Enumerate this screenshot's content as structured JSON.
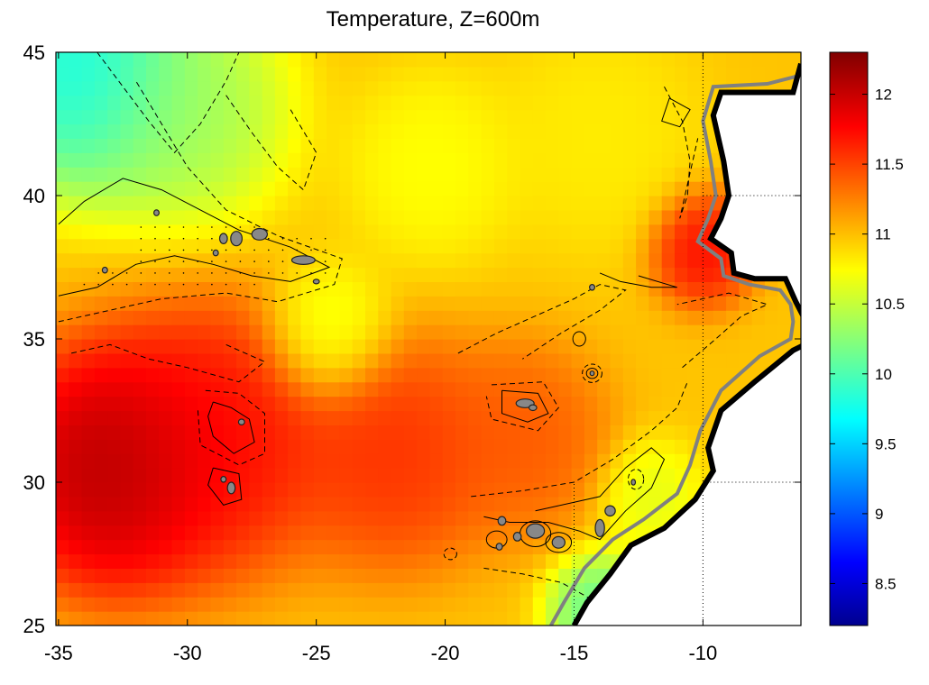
{
  "chart_data": {
    "type": "heatmap",
    "title": "Temperature, Z=600m",
    "xlabel": "",
    "ylabel": "",
    "x_ticks": [
      -35,
      -30,
      -25,
      -20,
      -15,
      -10
    ],
    "y_ticks": [
      25,
      30,
      35,
      40,
      45
    ],
    "xlim": [
      -35.1,
      -6.2
    ],
    "ylim": [
      25,
      45
    ],
    "colorbar": {
      "range": [
        8.2,
        12.3
      ],
      "ticks": [
        8.5,
        9,
        9.5,
        10,
        10.5,
        11,
        11.5,
        12
      ],
      "colormap": "jet"
    },
    "temperature_field": {
      "background": 11.0,
      "blobs": [
        {
          "lon": -33.0,
          "lat": 30.5,
          "value": 12.3,
          "spread": 3.2
        },
        {
          "lon": -29.0,
          "lat": 31.5,
          "value": 11.9,
          "spread": 3.5
        },
        {
          "lon": -22.0,
          "lat": 31.0,
          "value": 11.7,
          "spread": 3.0
        },
        {
          "lon": -17.0,
          "lat": 31.5,
          "value": 11.5,
          "spread": 2.5
        },
        {
          "lon": -10.0,
          "lat": 38.2,
          "value": 11.9,
          "spread": 1.5
        },
        {
          "lon": -34.0,
          "lat": 44.5,
          "value": 9.6,
          "spread": 3.2
        },
        {
          "lon": -30.0,
          "lat": 43.0,
          "value": 10.3,
          "spread": 3.0
        },
        {
          "lon": -24.5,
          "lat": 35.2,
          "value": 10.6,
          "spread": 1.8
        },
        {
          "lon": -20.5,
          "lat": 41.0,
          "value": 10.7,
          "spread": 2.5
        },
        {
          "lon": -14.0,
          "lat": 42.0,
          "value": 10.8,
          "spread": 3.0
        },
        {
          "lon": -14.0,
          "lat": 25.5,
          "value": 10.0,
          "spread": 1.5
        },
        {
          "lon": -12.0,
          "lat": 29.5,
          "value": 10.6,
          "spread": 1.5
        }
      ]
    },
    "dotted_gridlines": [
      {
        "lon": -10,
        "lat_range": [
          25,
          45
        ]
      },
      {
        "lon": -15,
        "lat_range": [
          25,
          30
        ]
      },
      {
        "lat": 30,
        "lon_range": [
          -10,
          -6.2
        ]
      },
      {
        "lat": 40,
        "lon_range": [
          -10,
          -6.2
        ]
      }
    ]
  }
}
